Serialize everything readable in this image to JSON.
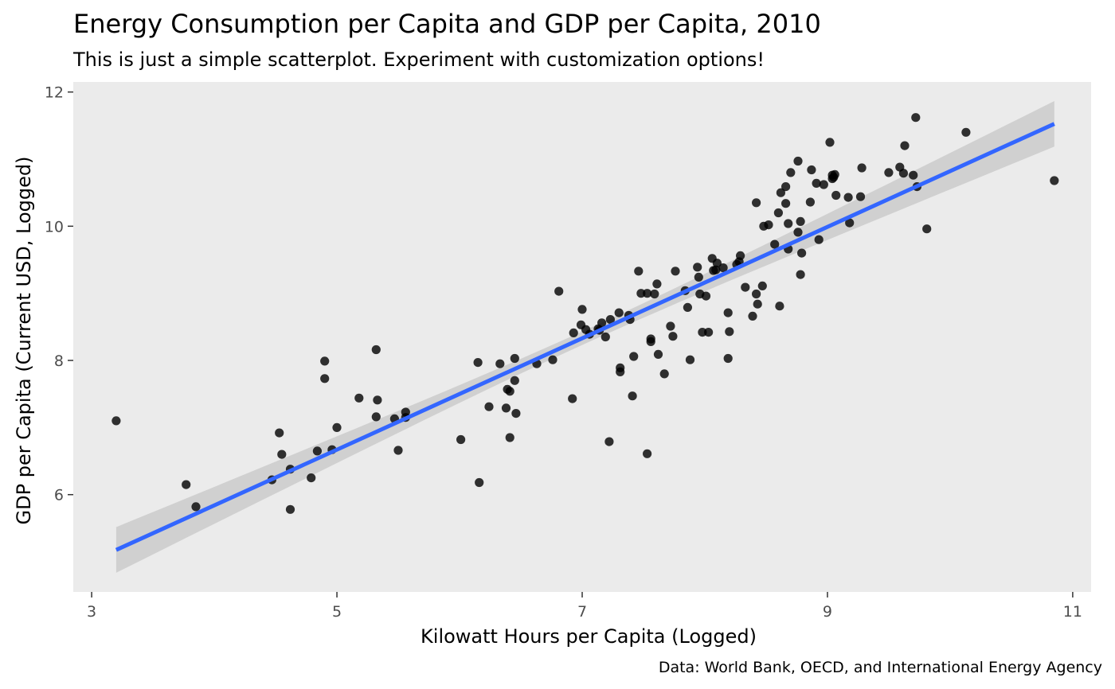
{
  "chart_data": {
    "type": "scatter",
    "title": "Energy Consumption per Capita and GDP per Capita, 2010",
    "subtitle": "This is just a simple scatterplot. Experiment with customization options!",
    "xlabel": "Kilowatt Hours per Capita (Logged)",
    "ylabel": "GDP per Capita (Current USD, Logged)",
    "caption": "Data: World Bank, OECD, and International Energy Agency",
    "xlim": [
      2.85,
      11.15
    ],
    "ylim": [
      4.55,
      12.15
    ],
    "x_ticks": [
      3,
      5,
      7,
      9,
      11
    ],
    "y_ticks": [
      6,
      8,
      10,
      12
    ],
    "grid": false,
    "legend": "none",
    "colors": {
      "panel": "#ebebeb",
      "points": "#000000",
      "fit_line": "#3366ff",
      "confidence_band": "#bebebe"
    },
    "fit": {
      "method": "linear",
      "x_range": [
        3.2,
        10.85
      ],
      "intercept": 2.52,
      "slope": 0.83,
      "band_halfwidth_at_ends": 0.34,
      "band_halfwidth_at_center": 0.1
    },
    "points": [
      [
        3.2,
        7.1
      ],
      [
        3.77,
        6.15
      ],
      [
        3.85,
        5.82
      ],
      [
        4.47,
        6.22
      ],
      [
        4.53,
        6.92
      ],
      [
        4.55,
        6.6
      ],
      [
        4.62,
        6.38
      ],
      [
        4.62,
        5.78
      ],
      [
        4.79,
        6.25
      ],
      [
        4.84,
        6.65
      ],
      [
        4.9,
        7.99
      ],
      [
        4.9,
        7.73
      ],
      [
        4.96,
        6.67
      ],
      [
        5.0,
        7.0
      ],
      [
        5.18,
        7.44
      ],
      [
        5.32,
        8.16
      ],
      [
        5.32,
        7.16
      ],
      [
        5.33,
        7.41
      ],
      [
        5.47,
        7.13
      ],
      [
        5.5,
        6.66
      ],
      [
        5.56,
        7.23
      ],
      [
        5.56,
        7.15
      ],
      [
        6.01,
        6.82
      ],
      [
        6.15,
        7.97
      ],
      [
        6.16,
        6.18
      ],
      [
        6.24,
        7.31
      ],
      [
        6.33,
        7.95
      ],
      [
        6.38,
        7.29
      ],
      [
        6.39,
        7.57
      ],
      [
        6.41,
        7.54
      ],
      [
        6.41,
        6.85
      ],
      [
        6.45,
        8.03
      ],
      [
        6.45,
        7.7
      ],
      [
        6.46,
        7.21
      ],
      [
        6.63,
        7.95
      ],
      [
        6.76,
        8.01
      ],
      [
        6.81,
        9.03
      ],
      [
        6.92,
        7.43
      ],
      [
        6.93,
        8.41
      ],
      [
        6.99,
        8.53
      ],
      [
        7.0,
        8.76
      ],
      [
        7.03,
        8.46
      ],
      [
        7.06,
        8.39
      ],
      [
        7.13,
        8.47
      ],
      [
        7.14,
        8.45
      ],
      [
        7.16,
        8.56
      ],
      [
        7.19,
        8.35
      ],
      [
        7.22,
        6.79
      ],
      [
        7.23,
        8.61
      ],
      [
        7.3,
        8.71
      ],
      [
        7.31,
        7.89
      ],
      [
        7.31,
        7.83
      ],
      [
        7.38,
        8.67
      ],
      [
        7.39,
        8.61
      ],
      [
        7.41,
        7.47
      ],
      [
        7.42,
        8.06
      ],
      [
        7.46,
        9.33
      ],
      [
        7.48,
        9.0
      ],
      [
        7.53,
        9.0
      ],
      [
        7.53,
        6.61
      ],
      [
        7.56,
        8.32
      ],
      [
        7.56,
        8.28
      ],
      [
        7.59,
        8.99
      ],
      [
        7.61,
        9.14
      ],
      [
        7.62,
        8.09
      ],
      [
        7.67,
        7.8
      ],
      [
        7.72,
        8.51
      ],
      [
        7.74,
        8.36
      ],
      [
        7.76,
        9.33
      ],
      [
        7.84,
        9.04
      ],
      [
        7.86,
        8.79
      ],
      [
        7.88,
        8.01
      ],
      [
        7.94,
        9.39
      ],
      [
        7.95,
        9.24
      ],
      [
        7.96,
        8.99
      ],
      [
        7.98,
        8.42
      ],
      [
        8.01,
        8.96
      ],
      [
        8.03,
        8.42
      ],
      [
        8.06,
        9.52
      ],
      [
        8.07,
        9.34
      ],
      [
        8.09,
        9.35
      ],
      [
        8.1,
        9.45
      ],
      [
        8.15,
        9.38
      ],
      [
        8.19,
        8.71
      ],
      [
        8.19,
        8.03
      ],
      [
        8.2,
        8.43
      ],
      [
        8.26,
        9.43
      ],
      [
        8.28,
        9.47
      ],
      [
        8.29,
        9.56
      ],
      [
        8.33,
        9.09
      ],
      [
        8.39,
        8.66
      ],
      [
        8.42,
        10.35
      ],
      [
        8.42,
        8.99
      ],
      [
        8.43,
        8.84
      ],
      [
        8.47,
        9.11
      ],
      [
        8.48,
        10.0
      ],
      [
        8.52,
        10.02
      ],
      [
        8.57,
        9.73
      ],
      [
        8.6,
        10.2
      ],
      [
        8.61,
        8.81
      ],
      [
        8.62,
        10.5
      ],
      [
        8.66,
        10.59
      ],
      [
        8.66,
        10.34
      ],
      [
        8.68,
        10.04
      ],
      [
        8.68,
        9.66
      ],
      [
        8.7,
        10.8
      ],
      [
        8.76,
        10.97
      ],
      [
        8.76,
        9.91
      ],
      [
        8.78,
        10.07
      ],
      [
        8.78,
        9.28
      ],
      [
        8.79,
        9.6
      ],
      [
        8.86,
        10.36
      ],
      [
        8.87,
        10.84
      ],
      [
        8.91,
        10.64
      ],
      [
        8.93,
        9.8
      ],
      [
        8.97,
        10.62
      ],
      [
        9.02,
        11.25
      ],
      [
        9.04,
        10.76
      ],
      [
        9.04,
        10.71
      ],
      [
        9.05,
        10.73
      ],
      [
        9.06,
        10.77
      ],
      [
        9.07,
        10.46
      ],
      [
        9.17,
        10.43
      ],
      [
        9.18,
        10.05
      ],
      [
        9.27,
        10.44
      ],
      [
        9.28,
        10.87
      ],
      [
        9.5,
        10.8
      ],
      [
        9.59,
        10.88
      ],
      [
        9.62,
        10.79
      ],
      [
        9.63,
        11.2
      ],
      [
        9.7,
        10.76
      ],
      [
        9.72,
        11.62
      ],
      [
        9.73,
        10.59
      ],
      [
        9.81,
        9.96
      ],
      [
        10.13,
        11.4
      ],
      [
        10.85,
        10.68
      ]
    ]
  }
}
